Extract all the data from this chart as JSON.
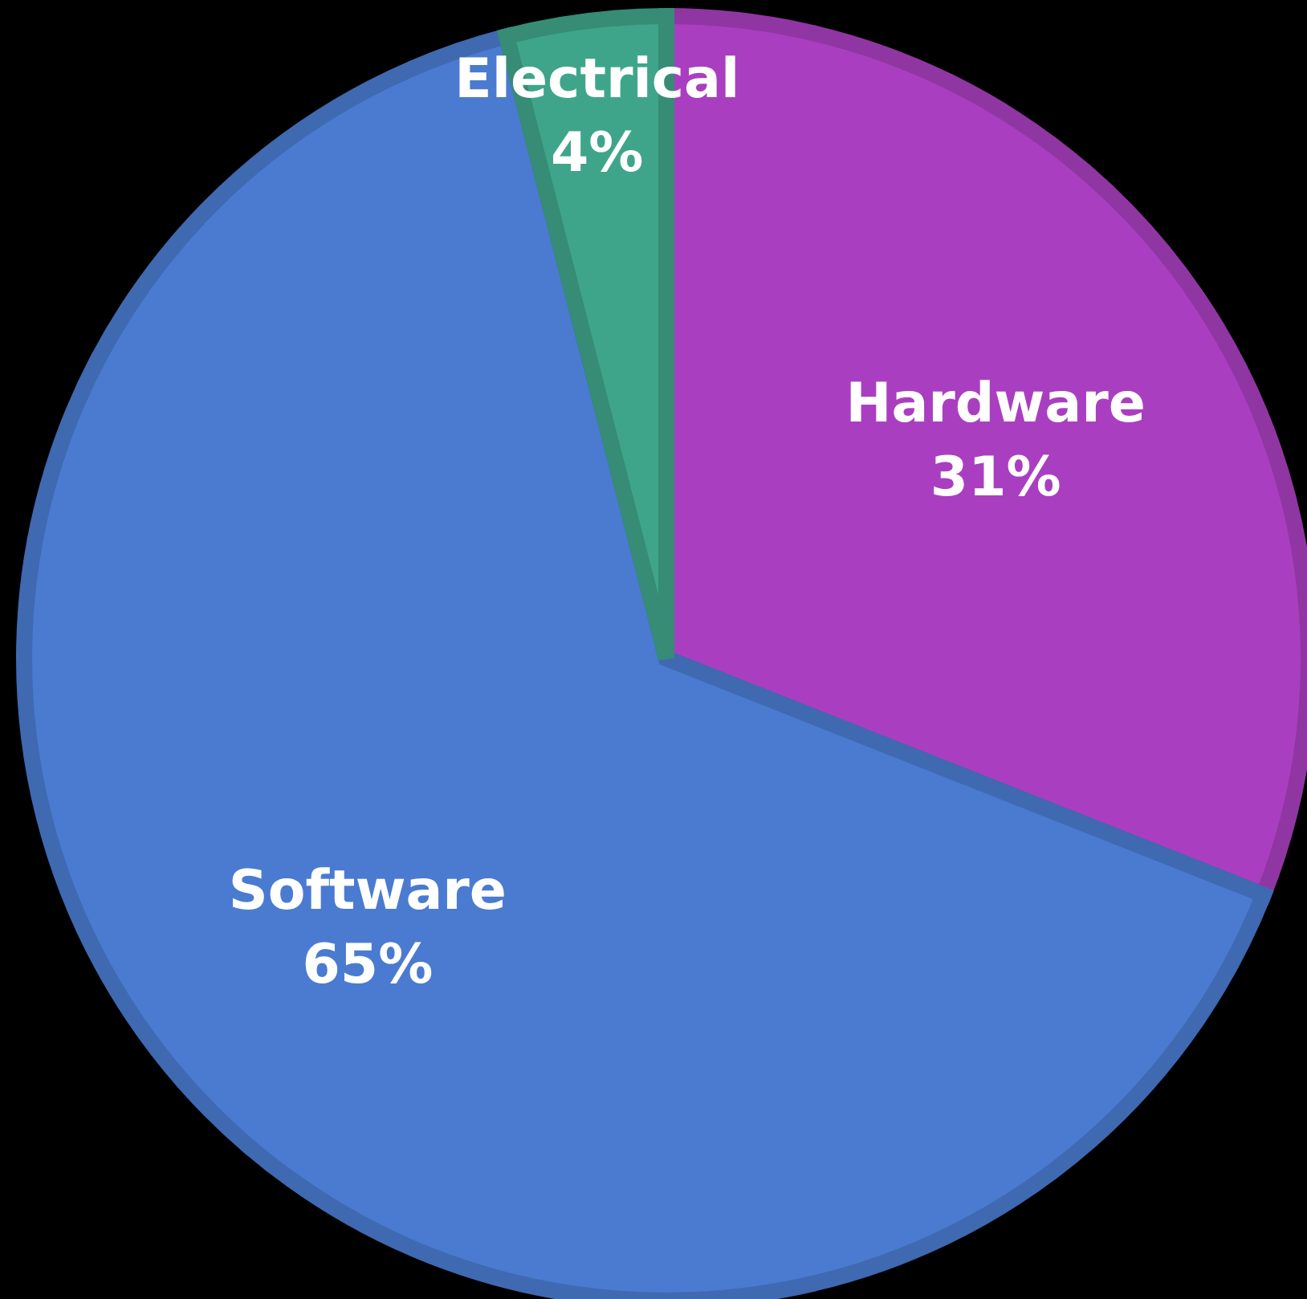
{
  "chart_data": {
    "type": "pie",
    "categories": [
      "Hardware",
      "Software",
      "Electrical"
    ],
    "values": [
      31,
      65,
      4
    ],
    "value_labels": [
      "31%",
      "65%",
      "4%"
    ],
    "colors": [
      "#a93fc0",
      "#4a7bd0",
      "#3fa58a"
    ]
  }
}
